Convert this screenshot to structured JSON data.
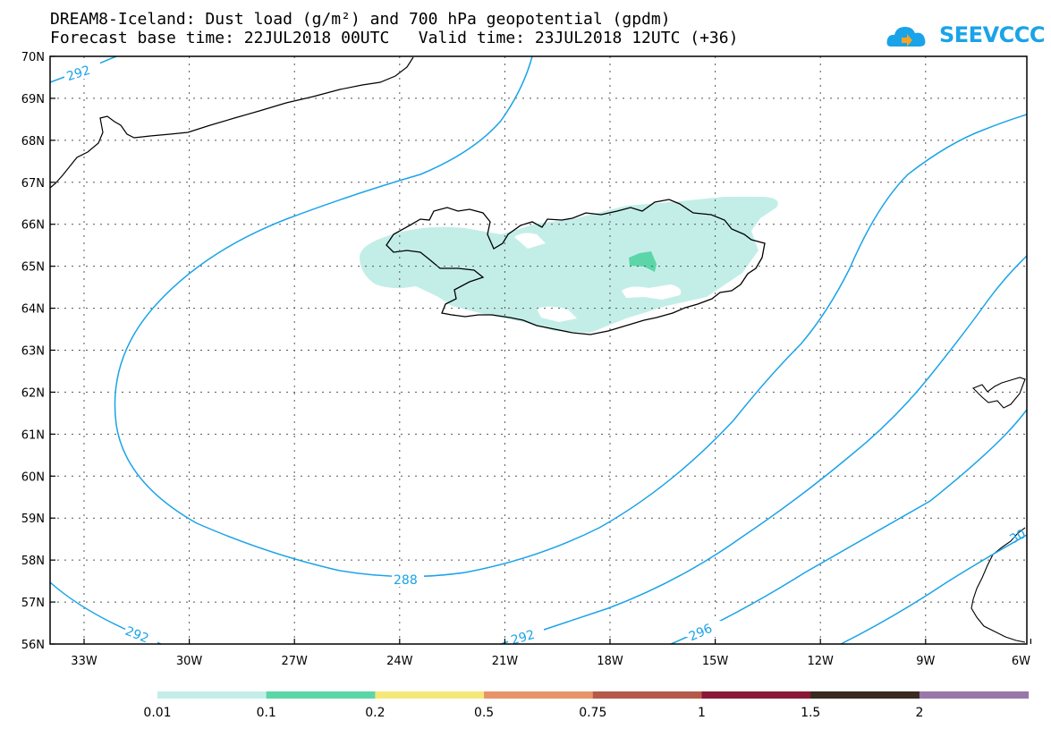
{
  "title": {
    "line1": "DREAM8-Iceland: Dust load (g/m²) and 700 hPa geopotential (gpdm)",
    "line2": "Forecast base time: 22JUL2018 00UTC   Valid time: 23JUL2018 12UTC (+36)"
  },
  "logo": {
    "text": "SEEVCCC",
    "color": "#1aa3e8"
  },
  "map": {
    "lat_labels": [
      "70N",
      "69N",
      "68N",
      "67N",
      "66N",
      "65N",
      "64N",
      "63N",
      "62N",
      "61N",
      "60N",
      "59N",
      "58N",
      "57N",
      "56N"
    ],
    "lon_labels": [
      "33W",
      "30W",
      "27W",
      "24W",
      "21W",
      "18W",
      "15W",
      "12W",
      "9W",
      "6W"
    ],
    "contour_color": "#1aa3e8",
    "contour_labels": [
      "292",
      "288",
      "292",
      "292",
      "296",
      "30"
    ],
    "dust_colors": {
      "light": "#c3eee8",
      "medium": "#5cd6a8"
    }
  },
  "legend": {
    "colors": [
      "#c3eee8",
      "#5cd6a8",
      "#f5e87a",
      "#e8946a",
      "#b55a4a",
      "#8a1838",
      "#3a2a20",
      "#9878a8"
    ],
    "labels": [
      "0.01",
      "0.1",
      "0.2",
      "0.5",
      "0.75",
      "1",
      "1.5",
      "2"
    ]
  }
}
